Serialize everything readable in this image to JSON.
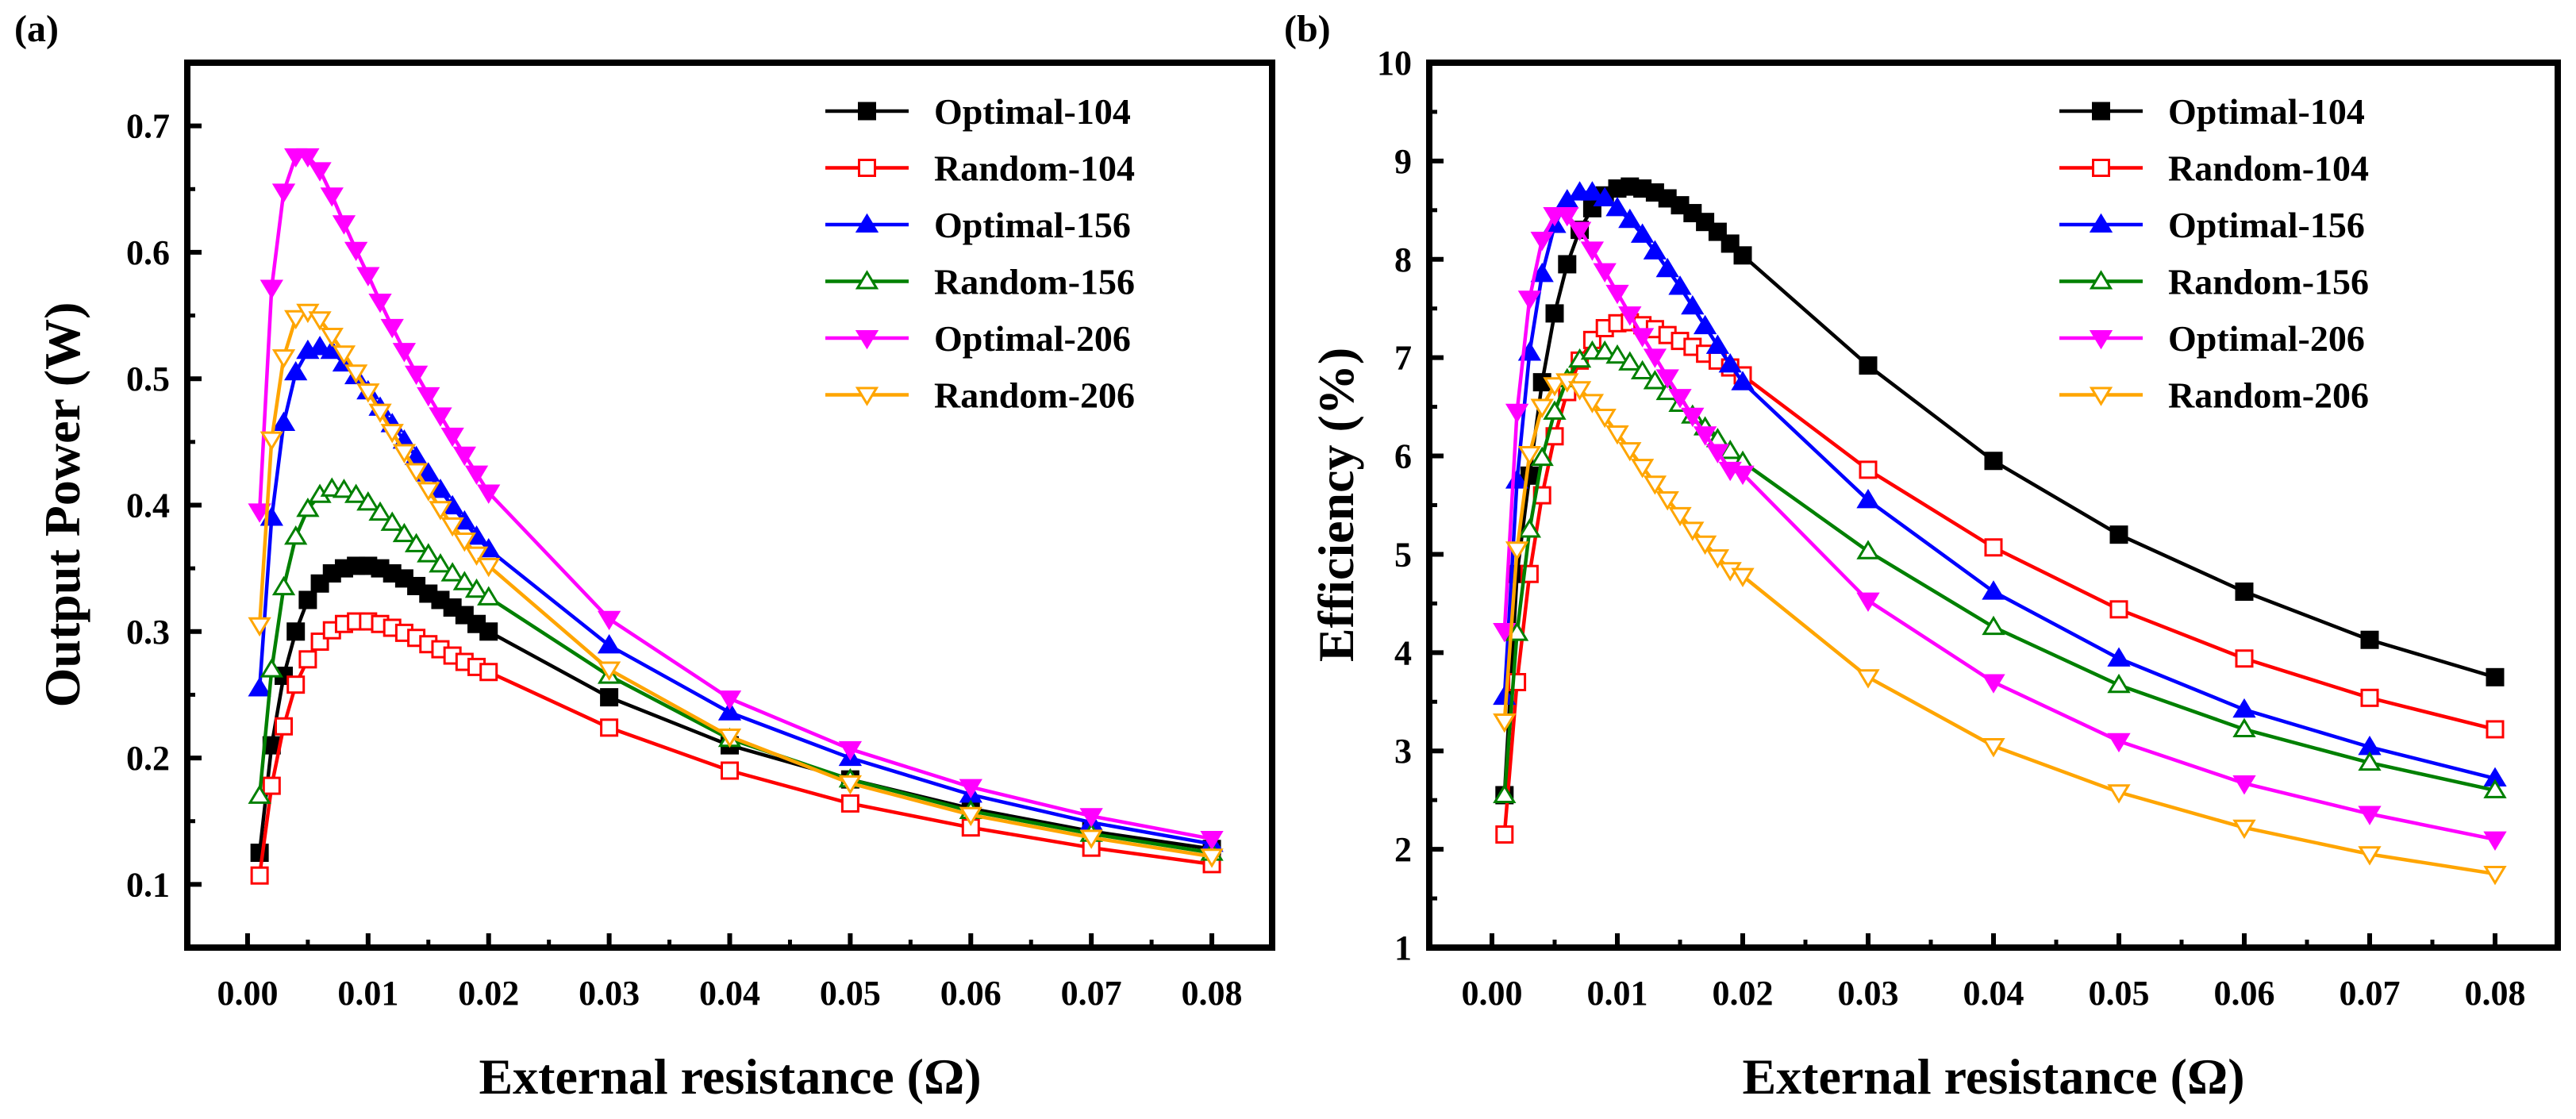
{
  "chart_data": [
    {
      "type": "line",
      "panel_label": "(a)",
      "xlabel": "External resistance (Ω)",
      "ylabel": "Output Power (W)",
      "xlim": [
        -0.005,
        0.085
      ],
      "ylim": [
        0.05,
        0.75
      ],
      "xticks": [
        "0.00",
        "0.01",
        "0.02",
        "0.03",
        "0.04",
        "0.05",
        "0.06",
        "0.07",
        "0.08"
      ],
      "yticks": [
        "0.1",
        "0.2",
        "0.3",
        "0.4",
        "0.5",
        "0.6",
        "0.7"
      ],
      "legend_position": "top-right",
      "series": [
        {
          "name": "Optimal-104",
          "color": "#000000",
          "marker": "square",
          "filled": true,
          "x": [
            0.001,
            0.002,
            0.003,
            0.004,
            0.005,
            0.006,
            0.007,
            0.008,
            0.009,
            0.01,
            0.011,
            0.012,
            0.013,
            0.014,
            0.015,
            0.016,
            0.017,
            0.018,
            0.019,
            0.02,
            0.03,
            0.04,
            0.05,
            0.06,
            0.07,
            0.08
          ],
          "y": [
            0.125,
            0.21,
            0.265,
            0.3,
            0.325,
            0.338,
            0.346,
            0.35,
            0.352,
            0.352,
            0.35,
            0.346,
            0.342,
            0.336,
            0.33,
            0.325,
            0.319,
            0.313,
            0.306,
            0.3,
            0.248,
            0.21,
            0.183,
            0.16,
            0.142,
            0.128
          ]
        },
        {
          "name": "Random-104",
          "color": "#ff0000",
          "marker": "square",
          "filled": false,
          "x": [
            0.001,
            0.002,
            0.003,
            0.004,
            0.005,
            0.006,
            0.007,
            0.008,
            0.009,
            0.01,
            0.011,
            0.012,
            0.013,
            0.014,
            0.015,
            0.016,
            0.017,
            0.018,
            0.019,
            0.02,
            0.03,
            0.04,
            0.05,
            0.06,
            0.07,
            0.08
          ],
          "y": [
            0.107,
            0.178,
            0.225,
            0.258,
            0.278,
            0.292,
            0.301,
            0.306,
            0.308,
            0.308,
            0.306,
            0.303,
            0.299,
            0.295,
            0.29,
            0.286,
            0.281,
            0.276,
            0.272,
            0.268,
            0.224,
            0.19,
            0.164,
            0.145,
            0.129,
            0.116
          ]
        },
        {
          "name": "Optimal-156",
          "color": "#0000ff",
          "marker": "triangle-up",
          "filled": true,
          "x": [
            0.001,
            0.002,
            0.003,
            0.004,
            0.005,
            0.006,
            0.007,
            0.008,
            0.009,
            0.01,
            0.011,
            0.012,
            0.013,
            0.014,
            0.015,
            0.016,
            0.017,
            0.018,
            0.019,
            0.02,
            0.03,
            0.04,
            0.05,
            0.06,
            0.07,
            0.08
          ],
          "y": [
            0.255,
            0.39,
            0.465,
            0.505,
            0.522,
            0.525,
            0.522,
            0.512,
            0.502,
            0.49,
            0.477,
            0.464,
            0.451,
            0.438,
            0.425,
            0.412,
            0.399,
            0.387,
            0.375,
            0.365,
            0.289,
            0.236,
            0.2,
            0.171,
            0.149,
            0.132
          ]
        },
        {
          "name": "Random-156",
          "color": "#008000",
          "marker": "triangle-up",
          "filled": false,
          "x": [
            0.001,
            0.002,
            0.003,
            0.004,
            0.005,
            0.006,
            0.007,
            0.008,
            0.009,
            0.01,
            0.011,
            0.012,
            0.013,
            0.014,
            0.015,
            0.016,
            0.017,
            0.018,
            0.019,
            0.02,
            0.03,
            0.04,
            0.05,
            0.06,
            0.07,
            0.08
          ],
          "y": [
            0.17,
            0.27,
            0.335,
            0.375,
            0.397,
            0.408,
            0.413,
            0.412,
            0.408,
            0.402,
            0.394,
            0.386,
            0.377,
            0.369,
            0.361,
            0.353,
            0.346,
            0.339,
            0.333,
            0.327,
            0.265,
            0.215,
            0.183,
            0.158,
            0.14,
            0.125
          ]
        },
        {
          "name": "Optimal-206",
          "color": "#ff00ff",
          "marker": "triangle-down",
          "filled": true,
          "x": [
            0.001,
            0.002,
            0.003,
            0.004,
            0.005,
            0.006,
            0.007,
            0.008,
            0.009,
            0.01,
            0.011,
            0.012,
            0.013,
            0.014,
            0.015,
            0.016,
            0.017,
            0.018,
            0.019,
            0.02,
            0.03,
            0.04,
            0.05,
            0.06,
            0.07,
            0.08
          ],
          "y": [
            0.395,
            0.572,
            0.648,
            0.676,
            0.676,
            0.665,
            0.645,
            0.623,
            0.602,
            0.582,
            0.561,
            0.541,
            0.522,
            0.504,
            0.487,
            0.471,
            0.455,
            0.44,
            0.425,
            0.41,
            0.31,
            0.247,
            0.207,
            0.177,
            0.154,
            0.136
          ]
        },
        {
          "name": "Random-206",
          "color": "#ffa500",
          "marker": "triangle-down",
          "filled": false,
          "x": [
            0.001,
            0.002,
            0.003,
            0.004,
            0.005,
            0.006,
            0.007,
            0.008,
            0.009,
            0.01,
            0.011,
            0.012,
            0.013,
            0.014,
            0.015,
            0.016,
            0.017,
            0.018,
            0.019,
            0.02,
            0.03,
            0.04,
            0.05,
            0.06,
            0.07,
            0.08
          ],
          "y": [
            0.305,
            0.452,
            0.517,
            0.548,
            0.553,
            0.547,
            0.534,
            0.52,
            0.505,
            0.49,
            0.474,
            0.458,
            0.442,
            0.427,
            0.412,
            0.397,
            0.384,
            0.372,
            0.361,
            0.352,
            0.27,
            0.217,
            0.18,
            0.155,
            0.137,
            0.122
          ]
        }
      ]
    },
    {
      "type": "line",
      "panel_label": "(b)",
      "xlabel": "External resistance (Ω)",
      "ylabel": "Efficiency (%)",
      "xlim": [
        -0.005,
        0.085
      ],
      "ylim": [
        1,
        10
      ],
      "xticks": [
        "0.00",
        "0.01",
        "0.02",
        "0.03",
        "0.04",
        "0.05",
        "0.06",
        "0.07",
        "0.08"
      ],
      "yticks": [
        "1",
        "2",
        "3",
        "4",
        "5",
        "6",
        "7",
        "8",
        "9",
        "10"
      ],
      "legend_position": "top-right",
      "series": [
        {
          "name": "Optimal-104",
          "color": "#000000",
          "marker": "square",
          "filled": true,
          "x": [
            0.001,
            0.002,
            0.003,
            0.004,
            0.005,
            0.006,
            0.007,
            0.008,
            0.009,
            0.01,
            0.011,
            0.012,
            0.013,
            0.014,
            0.015,
            0.016,
            0.017,
            0.018,
            0.019,
            0.02,
            0.03,
            0.04,
            0.05,
            0.06,
            0.07,
            0.08
          ],
          "y": [
            2.55,
            4.8,
            5.8,
            6.75,
            7.45,
            7.95,
            8.3,
            8.52,
            8.65,
            8.72,
            8.74,
            8.72,
            8.68,
            8.62,
            8.55,
            8.47,
            8.38,
            8.28,
            8.16,
            8.04,
            6.92,
            5.95,
            5.2,
            4.62,
            4.13,
            3.75
          ]
        },
        {
          "name": "Random-104",
          "color": "#ff0000",
          "marker": "square",
          "filled": false,
          "x": [
            0.001,
            0.002,
            0.003,
            0.004,
            0.005,
            0.006,
            0.007,
            0.008,
            0.009,
            0.01,
            0.011,
            0.012,
            0.013,
            0.014,
            0.015,
            0.016,
            0.017,
            0.018,
            0.019,
            0.02,
            0.03,
            0.04,
            0.05,
            0.06,
            0.07,
            0.08
          ],
          "y": [
            2.15,
            3.7,
            4.8,
            5.6,
            6.2,
            6.65,
            6.97,
            7.18,
            7.3,
            7.35,
            7.36,
            7.33,
            7.29,
            7.23,
            7.17,
            7.11,
            7.04,
            6.97,
            6.9,
            6.82,
            5.86,
            5.07,
            4.44,
            3.94,
            3.54,
            3.22
          ]
        },
        {
          "name": "Optimal-156",
          "color": "#0000ff",
          "marker": "triangle-up",
          "filled": true,
          "x": [
            0.001,
            0.002,
            0.003,
            0.004,
            0.005,
            0.006,
            0.007,
            0.008,
            0.009,
            0.01,
            0.011,
            0.012,
            0.013,
            0.014,
            0.015,
            0.016,
            0.017,
            0.018,
            0.019,
            0.02,
            0.03,
            0.04,
            0.05,
            0.06,
            0.07,
            0.08
          ],
          "y": [
            3.55,
            5.75,
            7.05,
            7.85,
            8.35,
            8.6,
            8.68,
            8.68,
            8.62,
            8.52,
            8.4,
            8.25,
            8.08,
            7.9,
            7.72,
            7.52,
            7.32,
            7.12,
            6.93,
            6.75,
            5.55,
            4.62,
            3.94,
            3.42,
            3.04,
            2.72
          ]
        },
        {
          "name": "Random-156",
          "color": "#008000",
          "marker": "triangle-up",
          "filled": false,
          "x": [
            0.001,
            0.002,
            0.003,
            0.004,
            0.005,
            0.006,
            0.007,
            0.008,
            0.009,
            0.01,
            0.011,
            0.012,
            0.013,
            0.014,
            0.015,
            0.016,
            0.017,
            0.018,
            0.019,
            0.02,
            0.03,
            0.04,
            0.05,
            0.06,
            0.07,
            0.08
          ],
          "y": [
            2.55,
            4.2,
            5.25,
            5.98,
            6.45,
            6.78,
            6.98,
            7.06,
            7.06,
            7.02,
            6.95,
            6.86,
            6.76,
            6.65,
            6.53,
            6.41,
            6.29,
            6.17,
            6.05,
            5.94,
            5.03,
            4.26,
            3.67,
            3.22,
            2.88,
            2.6
          ]
        },
        {
          "name": "Optimal-206",
          "color": "#ff00ff",
          "marker": "triangle-down",
          "filled": true,
          "x": [
            0.001,
            0.002,
            0.003,
            0.004,
            0.005,
            0.006,
            0.007,
            0.008,
            0.009,
            0.01,
            0.011,
            0.012,
            0.013,
            0.014,
            0.015,
            0.016,
            0.017,
            0.018,
            0.019,
            0.02,
            0.03,
            0.04,
            0.05,
            0.06,
            0.07,
            0.08
          ],
          "y": [
            4.22,
            6.45,
            7.6,
            8.2,
            8.45,
            8.45,
            8.3,
            8.1,
            7.88,
            7.66,
            7.44,
            7.22,
            7.01,
            6.8,
            6.6,
            6.41,
            6.22,
            6.04,
            5.86,
            5.82,
            4.53,
            3.7,
            3.1,
            2.67,
            2.36,
            2.1
          ]
        },
        {
          "name": "Random-206",
          "color": "#ffa500",
          "marker": "triangle-down",
          "filled": false,
          "x": [
            0.001,
            0.002,
            0.003,
            0.004,
            0.005,
            0.006,
            0.007,
            0.008,
            0.009,
            0.01,
            0.011,
            0.012,
            0.013,
            0.014,
            0.015,
            0.016,
            0.017,
            0.018,
            0.019,
            0.02,
            0.03,
            0.04,
            0.05,
            0.06,
            0.07,
            0.08
          ],
          "y": [
            3.3,
            5.05,
            6.02,
            6.5,
            6.72,
            6.76,
            6.68,
            6.55,
            6.4,
            6.23,
            6.06,
            5.89,
            5.72,
            5.56,
            5.4,
            5.25,
            5.11,
            4.97,
            4.84,
            4.78,
            3.75,
            3.05,
            2.58,
            2.22,
            1.95,
            1.75
          ]
        }
      ]
    }
  ]
}
